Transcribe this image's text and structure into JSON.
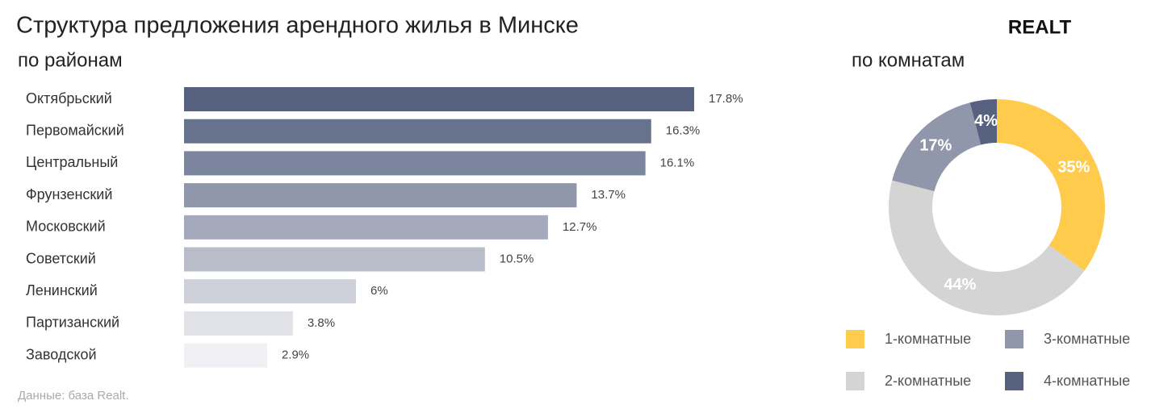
{
  "title": "Структура предложения арендного жилья в Минске",
  "logo": "REALT",
  "source": "Данные: база Realt.",
  "chart_data": [
    {
      "type": "bar",
      "orientation": "horizontal",
      "subtitle": "по районам",
      "categories": [
        "Октябрьский",
        "Первомайский",
        "Центральный",
        "Фрунзенский",
        "Московский",
        "Советский",
        "Ленинский",
        "Партизанский",
        "Заводской"
      ],
      "values": [
        17.8,
        16.3,
        16.1,
        13.7,
        12.7,
        10.5,
        6,
        3.8,
        2.9
      ],
      "value_labels": [
        "17.8%",
        "16.3%",
        "16.1%",
        "13.7%",
        "12.7%",
        "10.5%",
        "6%",
        "3.8%",
        "2.9%"
      ],
      "colors": [
        "#56627f",
        "#67728d",
        "#7c859e",
        "#9097ab",
        "#a4aabb",
        "#b9bdca",
        "#cfd1da",
        "#e2e3e9",
        "#f0f0f4"
      ]
    },
    {
      "type": "pie",
      "donut": true,
      "subtitle": "по комнатам",
      "categories": [
        "1-комнатные",
        "2-комнатные",
        "3-комнатные",
        "4-комнатные"
      ],
      "values": [
        35,
        44,
        17,
        4
      ],
      "value_labels": [
        "35%",
        "44%",
        "17%",
        "4%"
      ],
      "colors": [
        "#fecb4d",
        "#d4d4d4",
        "#9097ab",
        "#56627f"
      ]
    }
  ]
}
